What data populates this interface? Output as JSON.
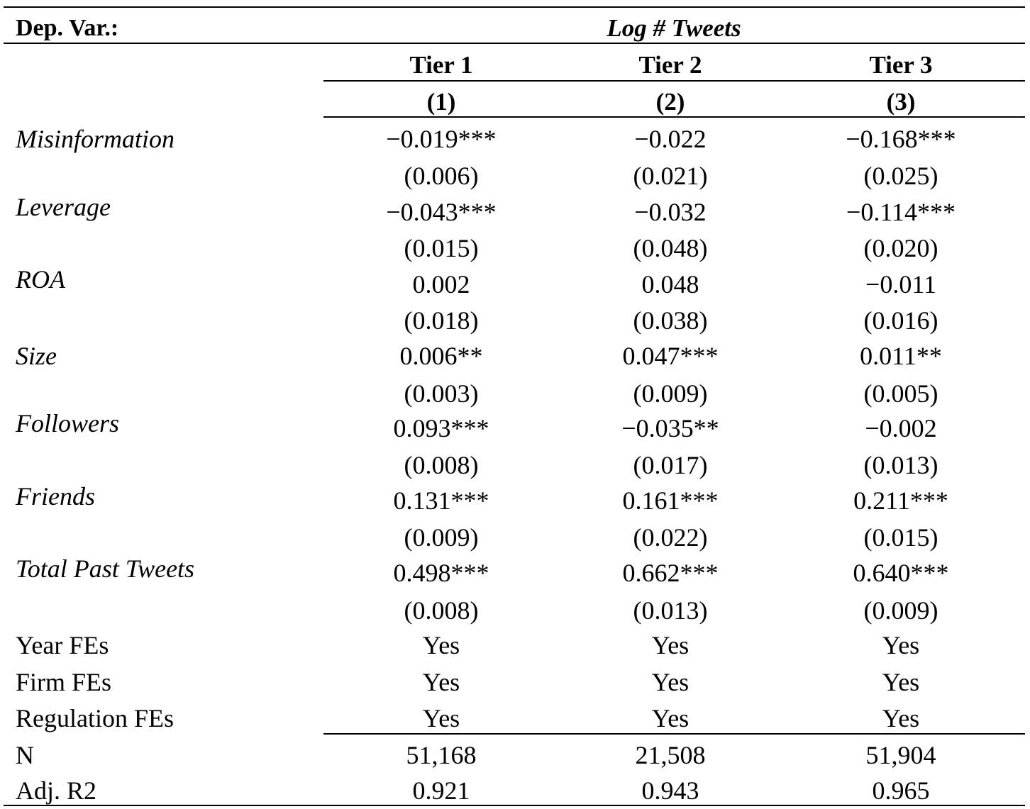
{
  "dep_var_label": "Dep. Var.:",
  "dep_var_value": "Log # Tweets",
  "columns": [
    {
      "tier": "Tier 1",
      "num": "(1)"
    },
    {
      "tier": "Tier 2",
      "num": "(2)"
    },
    {
      "tier": "Tier 3",
      "num": "(3)"
    }
  ],
  "variables": [
    {
      "name": "Misinformation",
      "coef": [
        "−0.019***",
        "−0.022",
        "−0.168***"
      ],
      "se": [
        "(0.006)",
        "(0.021)",
        "(0.025)"
      ]
    },
    {
      "name": "Leverage",
      "coef": [
        "−0.043***",
        "−0.032",
        "−0.114***"
      ],
      "se": [
        "(0.015)",
        "(0.048)",
        "(0.020)"
      ]
    },
    {
      "name": "ROA",
      "coef": [
        "0.002",
        "0.048",
        "−0.011"
      ],
      "se": [
        "(0.018)",
        "(0.038)",
        "(0.016)"
      ]
    },
    {
      "name": "Size",
      "coef": [
        "0.006**",
        "0.047***",
        "0.011**"
      ],
      "se": [
        "(0.003)",
        "(0.009)",
        "(0.005)"
      ]
    },
    {
      "name": "Followers",
      "coef": [
        "0.093***",
        "−0.035**",
        "−0.002"
      ],
      "se": [
        "(0.008)",
        "(0.017)",
        "(0.013)"
      ]
    },
    {
      "name": "Friends",
      "coef": [
        "0.131***",
        "0.161***",
        "0.211***"
      ],
      "se": [
        "(0.009)",
        "(0.022)",
        "(0.015)"
      ]
    },
    {
      "name": "Total Past Tweets",
      "coef": [
        "0.498***",
        "0.662***",
        "0.640***"
      ],
      "se": [
        "(0.008)",
        "(0.013)",
        "(0.009)"
      ]
    }
  ],
  "fixed_effects": [
    {
      "name": "Year FEs",
      "values": [
        "Yes",
        "Yes",
        "Yes"
      ]
    },
    {
      "name": "Firm FEs",
      "values": [
        "Yes",
        "Yes",
        "Yes"
      ]
    },
    {
      "name": "Regulation FEs",
      "values": [
        "Yes",
        "Yes",
        "Yes"
      ]
    }
  ],
  "stats": [
    {
      "name": "N",
      "values": [
        "51,168",
        "21,508",
        "51,904"
      ]
    },
    {
      "name": "Adj. R2",
      "values": [
        "0.921",
        "0.943",
        "0.965"
      ]
    }
  ]
}
